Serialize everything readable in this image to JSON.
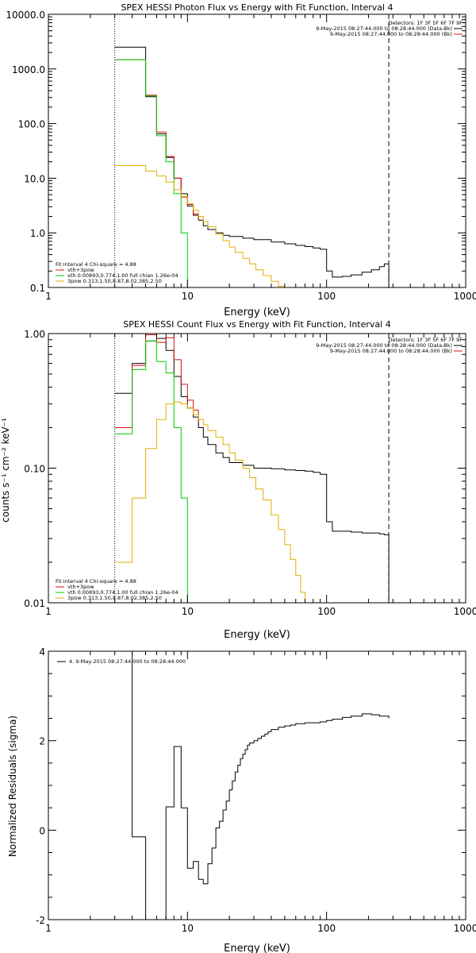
{
  "chart_data": [
    {
      "type": "line",
      "title": "SPEX HESSI Photon Flux vs Energy with Fit Function, Interval 4",
      "xlabel": "Energy (keV)",
      "ylabel": "",
      "xscale": "log",
      "yscale": "log",
      "xlim": [
        1,
        1000
      ],
      "ylim": [
        0.1,
        10000
      ],
      "xticks": [
        "1",
        "10",
        "100",
        "1000"
      ],
      "yticks": [
        "0.1",
        "1.0",
        "10.0",
        "100.0",
        "1000.0",
        "10000.0"
      ],
      "vlines": [
        {
          "x": 3,
          "style": "dotted"
        },
        {
          "x": 280,
          "style": "dashed"
        }
      ],
      "legend_top_right": [
        "Detectors: 1F 3F 5F 6F 7F 9F",
        "9-May-2015 08:27:44.000 to 08:28:44.000 (Data-Bk)",
        "9-May-2015 08:27:44.000 to 08:28:44.000 (Bk)"
      ],
      "legend_bottom_left": [
        "Fit Interval 4   Chi-square = 4.88",
        "vth+3pow",
        "vth 0.00893,0.774,1.00  full chian 1.26e-04",
        "3pow 0.313,1.50,8.87,8.02,385,2.50"
      ],
      "series": [
        {
          "name": "",
          "color": "#000000",
          "x": [
            3,
            4,
            5,
            6,
            7,
            8,
            9,
            10,
            11,
            12,
            13,
            14,
            16,
            18,
            20,
            25,
            30,
            40,
            50,
            60,
            70,
            80,
            90,
            100,
            110,
            130,
            150,
            180,
            210,
            240,
            260,
            280
          ],
          "y": [
            2500,
            2500,
            310,
            65,
            24,
            10,
            5.2,
            3.1,
            2.1,
            1.7,
            1.35,
            1.15,
            1.0,
            0.9,
            0.86,
            0.8,
            0.75,
            0.68,
            0.63,
            0.59,
            0.56,
            0.53,
            0.5,
            0.2,
            0.155,
            0.16,
            0.17,
            0.19,
            0.21,
            0.24,
            0.27,
            0.1
          ]
        },
        {
          "name": "",
          "color": "#e01010",
          "x": [
            3,
            4,
            5,
            6,
            7,
            8,
            9,
            10,
            11,
            12
          ],
          "y": [
            1480,
            1480,
            330,
            70,
            25,
            10,
            4.5,
            3.3,
            2.2,
            1.7
          ]
        },
        {
          "name": "",
          "color": "#00cc00",
          "x": [
            3,
            4,
            5,
            6,
            7,
            8,
            9,
            10
          ],
          "y": [
            1480,
            1480,
            320,
            60,
            20,
            5.2,
            1.0,
            0.1
          ]
        },
        {
          "name": "",
          "color": "#e0b000",
          "x": [
            3,
            4,
            5,
            6,
            7,
            8,
            9,
            10,
            11,
            12,
            13,
            14,
            16,
            18,
            20,
            22,
            25,
            28,
            31,
            35,
            40,
            45,
            50
          ],
          "y": [
            17,
            17,
            13.5,
            11,
            8.5,
            6.2,
            4.6,
            3.4,
            2.6,
            2.0,
            1.6,
            1.3,
            0.95,
            0.72,
            0.55,
            0.44,
            0.34,
            0.27,
            0.21,
            0.165,
            0.13,
            0.105,
            0.1
          ]
        }
      ]
    },
    {
      "type": "line",
      "title": "SPEX HESSI Count Flux vs Energy with Fit Function, Interval 4",
      "xlabel": "Energy (keV)",
      "ylabel": "counts s⁻¹ cm⁻² keV⁻¹",
      "xscale": "log",
      "yscale": "log",
      "xlim": [
        1,
        1000
      ],
      "ylim": [
        0.01,
        1.0
      ],
      "xticks": [
        "1",
        "10",
        "100",
        "1000"
      ],
      "yticks": [
        "0.01",
        "0.10",
        "1.00"
      ],
      "vlines": [
        {
          "x": 3,
          "style": "dotted"
        },
        {
          "x": 280,
          "style": "dashed"
        }
      ],
      "legend_top_right": [
        "Detectors: 1F 3F 5F 6F 7F 9F",
        "9-May-2015 08:27:44.000 to 08:28:44.000 (Data-Bk)",
        "9-May-2015 08:27:44.000 to 08:28:44.000 (Bk)"
      ],
      "legend_bottom_left": [
        "Fit Interval 4   Chi-square = 4.88",
        "vth+3pow",
        "vth 0.00893,0.774,1.00  full chian 1.26e-04",
        "3pow 0.313,1.50,8.87,8.02,385,2.50"
      ],
      "series": [
        {
          "name": "",
          "color": "#000000",
          "x": [
            3,
            4,
            5,
            6,
            7,
            8,
            9,
            10,
            11,
            12,
            13,
            14,
            16,
            18,
            20,
            25,
            30,
            40,
            50,
            60,
            70,
            80,
            90,
            100,
            110,
            130,
            150,
            180,
            210,
            240,
            260,
            280
          ],
          "y": [
            0.36,
            0.6,
            0.88,
            0.92,
            0.75,
            0.48,
            0.34,
            0.28,
            0.24,
            0.2,
            0.17,
            0.15,
            0.13,
            0.12,
            0.11,
            0.105,
            0.1,
            0.099,
            0.097,
            0.096,
            0.095,
            0.093,
            0.09,
            0.04,
            0.034,
            0.034,
            0.0335,
            0.033,
            0.033,
            0.0325,
            0.032,
            0.01
          ]
        },
        {
          "name": "",
          "color": "#e01010",
          "x": [
            3,
            4,
            5,
            6,
            7,
            8,
            9,
            10,
            11,
            12
          ],
          "y": [
            0.2,
            0.58,
            0.98,
            0.86,
            0.93,
            0.64,
            0.42,
            0.32,
            0.27,
            0.22
          ]
        },
        {
          "name": "",
          "color": "#00cc00",
          "x": [
            3,
            4,
            5,
            6,
            7,
            8,
            9,
            10
          ],
          "y": [
            0.18,
            0.54,
            0.88,
            0.62,
            0.51,
            0.2,
            0.06,
            0.01
          ]
        },
        {
          "name": "",
          "color": "#e0b000",
          "x": [
            3,
            4,
            5,
            6,
            7,
            8,
            9,
            10,
            11,
            12,
            13,
            14,
            16,
            18,
            20,
            22,
            25,
            28,
            31,
            35,
            40,
            45,
            50,
            55,
            60,
            65,
            70
          ],
          "y": [
            0.02,
            0.06,
            0.14,
            0.23,
            0.3,
            0.31,
            0.3,
            0.28,
            0.25,
            0.23,
            0.21,
            0.19,
            0.17,
            0.15,
            0.13,
            0.115,
            0.1,
            0.085,
            0.07,
            0.058,
            0.045,
            0.035,
            0.027,
            0.021,
            0.016,
            0.012,
            0.01
          ]
        }
      ]
    },
    {
      "type": "line",
      "title": "",
      "xlabel": "Energy (keV)",
      "ylabel": "Normalized Residuals (sigma)",
      "xscale": "log",
      "yscale": "linear",
      "xlim": [
        1,
        1000
      ],
      "ylim": [
        -2,
        4
      ],
      "xticks": [
        "1",
        "10",
        "100",
        "1000"
      ],
      "yticks": [
        "-2",
        "0",
        "2",
        "4"
      ],
      "legend": [
        "4.  9-May-2015 08:27:44.000 to 08:28:44.000"
      ],
      "series": [
        {
          "name": "",
          "color": "#000000",
          "x": [
            3,
            4,
            5,
            6,
            7,
            8,
            9,
            10,
            11,
            12,
            13,
            14,
            15,
            16,
            17,
            18,
            19,
            20,
            21,
            22,
            23,
            24,
            25,
            26,
            27,
            28,
            30,
            32,
            34,
            36,
            38,
            40,
            45,
            50,
            55,
            60,
            70,
            80,
            90,
            100,
            110,
            130,
            150,
            180,
            210,
            240,
            280
          ],
          "y": [
            4,
            -0.15,
            -2,
            -2,
            0.52,
            1.87,
            0.5,
            -0.85,
            -0.7,
            -1.1,
            -1.2,
            -0.75,
            -0.4,
            0.05,
            0.2,
            0.45,
            0.65,
            0.9,
            1.1,
            1.3,
            1.45,
            1.6,
            1.7,
            1.8,
            1.9,
            1.95,
            2.0,
            2.05,
            2.1,
            2.15,
            2.2,
            2.25,
            2.3,
            2.33,
            2.35,
            2.38,
            2.4,
            2.4,
            2.42,
            2.45,
            2.48,
            2.52,
            2.55,
            2.6,
            2.58,
            2.55,
            2.5
          ]
        }
      ]
    }
  ]
}
